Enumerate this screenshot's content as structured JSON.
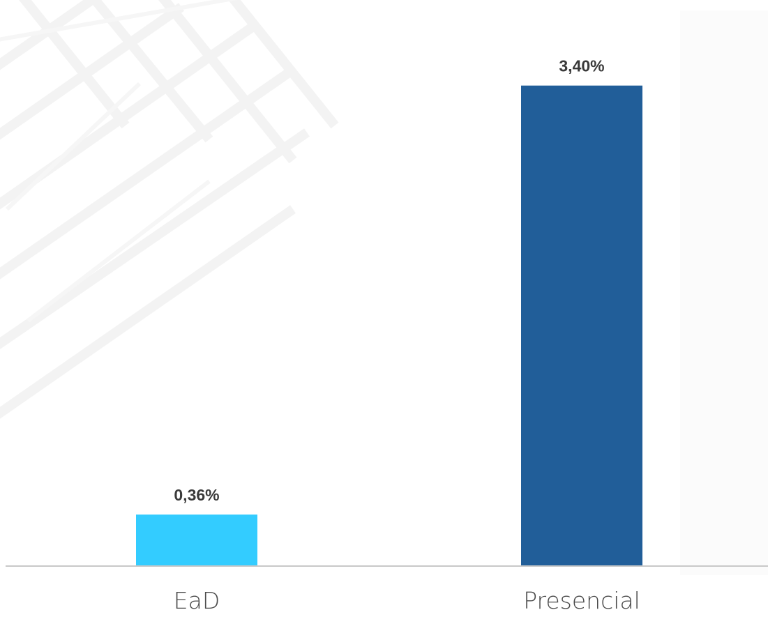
{
  "chart_data": {
    "type": "bar",
    "categories": [
      "EaD",
      "Presencial"
    ],
    "values": [
      0.36,
      3.4
    ],
    "value_labels": [
      "0,36%",
      "3,40%"
    ],
    "colors": [
      "#33ccff",
      "#215e99"
    ],
    "title": "",
    "xlabel": "",
    "ylabel": "",
    "ylim": [
      0,
      3.7
    ],
    "grid": false,
    "legend": "none"
  },
  "style": {
    "axis_color": "#c8c8c8",
    "value_label_color": "#3a3a3a",
    "category_label_color": "#4a4a4a"
  }
}
